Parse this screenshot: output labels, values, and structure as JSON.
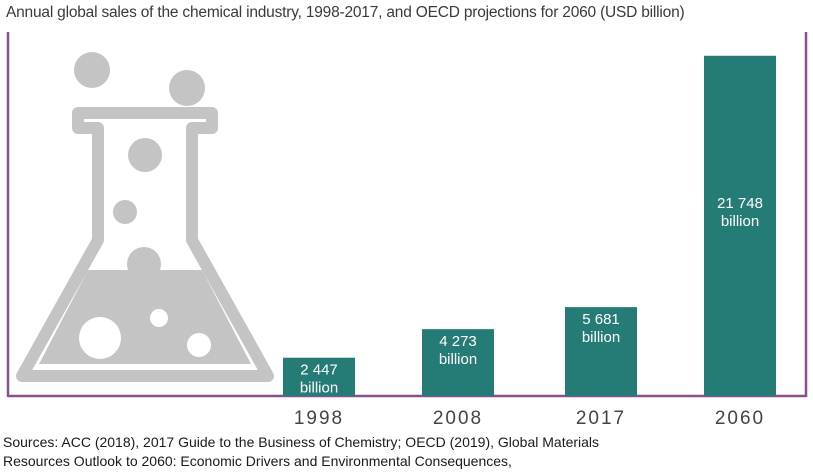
{
  "colors": {
    "bar": "#257c77",
    "frame": "#8a4f8c",
    "flask": "#c4c4c4",
    "label_on_bar": "#ffffff",
    "tick_label": "#444444"
  },
  "chart_data": {
    "type": "bar",
    "title": "Annual global sales of the chemical industry, 1998-2017, and OECD projections for 2060 (USD billion)",
    "categories": [
      "1998",
      "2008",
      "2017",
      "2060"
    ],
    "values": [
      2447,
      4273,
      5681,
      21748
    ],
    "data_labels": [
      [
        "2 447",
        "billion"
      ],
      [
        "4 273",
        "billion"
      ],
      [
        "5 681",
        "billion"
      ],
      [
        "21 748",
        "billion"
      ]
    ],
    "ylim": [
      0,
      22500
    ],
    "grid": false,
    "legend": "none",
    "decoration": "chemistry-flask-icon"
  },
  "sources": [
    "Sources: ACC (2018), 2017 Guide to the Business of Chemistry; OECD (2019), Global Materials",
    "Resources Outlook to 2060: Economic Drivers and Environmental Consequences,"
  ]
}
